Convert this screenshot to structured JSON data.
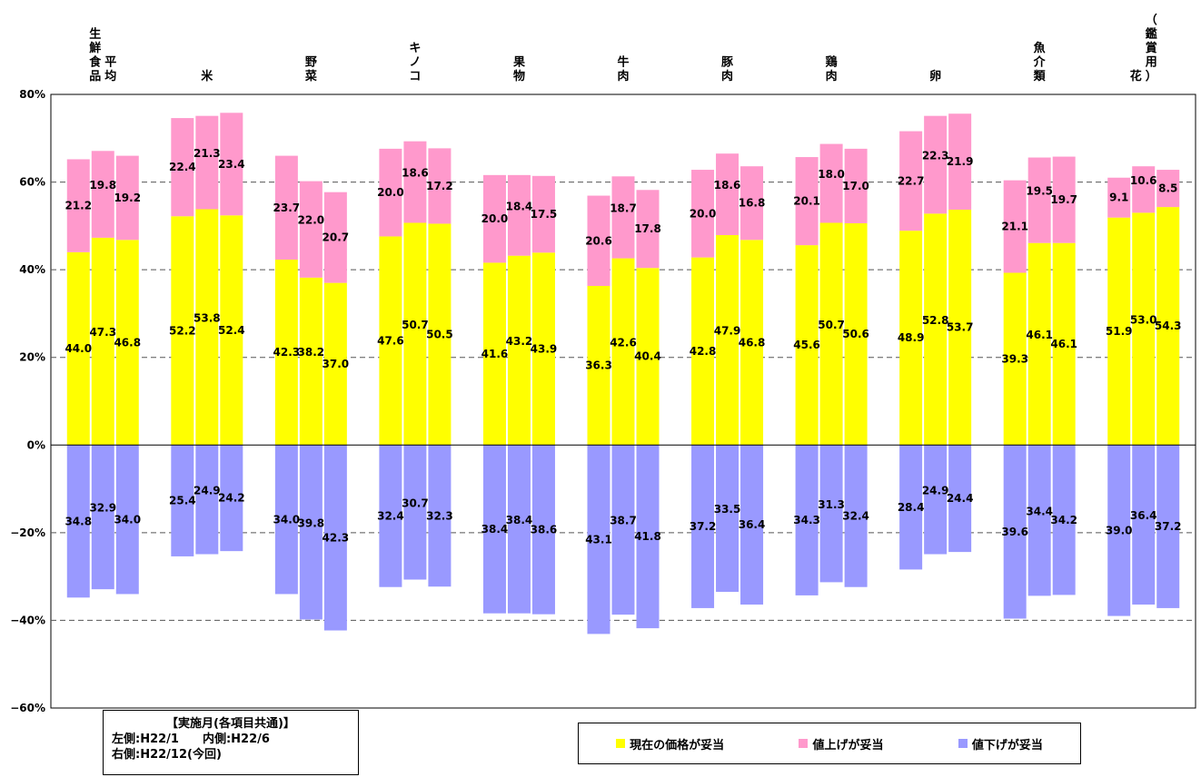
{
  "chart_data": {
    "type": "bar",
    "stacked": true,
    "categories": [
      [
        "平",
        "均",
        "",
        "生",
        "鮮",
        "食",
        "品"
      ],
      [
        "米"
      ],
      [
        "野",
        "菜"
      ],
      [
        "キ",
        "ノ",
        "コ"
      ],
      [
        "果",
        "物"
      ],
      [
        "牛",
        "肉"
      ],
      [
        "豚",
        "肉"
      ],
      [
        "鶏",
        "肉"
      ],
      [
        "卵"
      ],
      [
        "魚",
        "介",
        "類"
      ],
      [
        "花",
        "",
        "（",
        "鑑",
        "賞",
        "用",
        "）"
      ]
    ],
    "category_columns": [
      [
        [
          "平",
          "均"
        ],
        [
          "生",
          "鮮",
          "食",
          "品"
        ]
      ],
      [
        [
          "米"
        ]
      ],
      [
        [
          "野",
          "菜"
        ]
      ],
      [
        [
          "キ",
          "ノ",
          "コ"
        ]
      ],
      [
        [
          "果",
          "物"
        ]
      ],
      [
        [
          "牛",
          "肉"
        ]
      ],
      [
        [
          "豚",
          "肉"
        ]
      ],
      [
        [
          "鶏",
          "肉"
        ]
      ],
      [
        [
          "卵"
        ]
      ],
      [
        [
          "魚",
          "介",
          "類"
        ]
      ],
      [
        [
          "（",
          "鑑",
          "賞",
          "用",
          "）"
        ],
        [
          "花"
        ]
      ]
    ],
    "series": [
      {
        "name": "現在の価格が妥当",
        "color": "#ffff00",
        "values": [
          [
            44.0,
            47.3,
            46.8
          ],
          [
            52.2,
            53.8,
            52.4
          ],
          [
            42.3,
            38.2,
            37.0
          ],
          [
            47.6,
            50.7,
            50.5
          ],
          [
            41.6,
            43.2,
            43.9
          ],
          [
            36.3,
            42.6,
            40.4
          ],
          [
            42.8,
            47.9,
            46.8
          ],
          [
            45.6,
            50.7,
            50.6
          ],
          [
            48.9,
            52.8,
            53.7
          ],
          [
            39.3,
            46.1,
            46.1
          ],
          [
            51.9,
            53.0,
            54.3
          ]
        ]
      },
      {
        "name": "値上げが妥当",
        "color": "#ff99cc",
        "values": [
          [
            21.2,
            19.8,
            19.2
          ],
          [
            22.4,
            21.3,
            23.4
          ],
          [
            23.7,
            22.0,
            20.7
          ],
          [
            20.0,
            18.6,
            17.2
          ],
          [
            20.0,
            18.4,
            17.5
          ],
          [
            20.6,
            18.7,
            17.8
          ],
          [
            20.0,
            18.6,
            16.8
          ],
          [
            20.1,
            18.0,
            17.0
          ],
          [
            22.7,
            22.3,
            21.9
          ],
          [
            21.1,
            19.5,
            19.7
          ],
          [
            9.1,
            10.6,
            8.5
          ]
        ]
      },
      {
        "name": "値下げが妥当",
        "color": "#9999ff",
        "values": [
          [
            34.8,
            32.9,
            34.0
          ],
          [
            25.4,
            24.9,
            24.2
          ],
          [
            34.0,
            39.8,
            42.3
          ],
          [
            32.4,
            30.7,
            32.3
          ],
          [
            38.4,
            38.4,
            38.6
          ],
          [
            43.1,
            38.7,
            41.8
          ],
          [
            37.2,
            33.5,
            36.4
          ],
          [
            34.3,
            31.3,
            32.4
          ],
          [
            28.4,
            24.9,
            24.4
          ],
          [
            39.6,
            34.4,
            34.2
          ],
          [
            39.0,
            36.4,
            37.2
          ]
        ]
      }
    ],
    "ylim": [
      -60,
      80
    ],
    "yticks": [
      80,
      60,
      40,
      20,
      0,
      -20,
      -40,
      -60
    ],
    "ytick_labels": [
      "80%",
      "60%",
      "40%",
      "20%",
      "0%",
      "−20%",
      "−40%",
      "−60%"
    ],
    "grid": "dashed horizontal at ±20 step",
    "legend_placement": "bottom-right"
  },
  "note": {
    "title": "【実施月(各項目共通)】",
    "line1": "左側:H22/1　　内側:H22/6",
    "line2": "右側:H22/12(今回)"
  },
  "legend": {
    "items": [
      {
        "label": "現在の価格が妥当",
        "color": "#ffff00"
      },
      {
        "label": "値上げが妥当",
        "color": "#ff99cc"
      },
      {
        "label": "値下げが妥当",
        "color": "#9999ff"
      }
    ]
  }
}
